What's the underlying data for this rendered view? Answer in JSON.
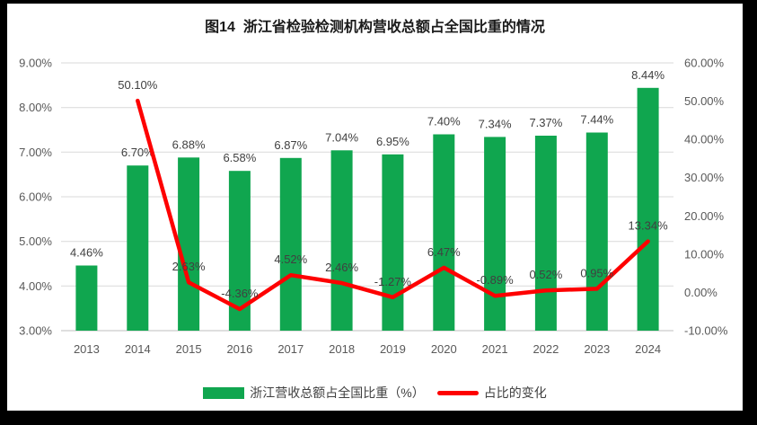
{
  "frame": {
    "border_color": "#000000",
    "panel_background": "#ffffff"
  },
  "title": "图14  浙江省检验检测机构营收总额占全国比重的情况",
  "chart_data": {
    "type": "bar",
    "subtype": "combo-bar-line",
    "title": "图14  浙江省检验检测机构营收总额占全国比重的情况",
    "categories": [
      "2013",
      "2014",
      "2015",
      "2016",
      "2017",
      "2018",
      "2019",
      "2020",
      "2021",
      "2022",
      "2023",
      "2024"
    ],
    "series": [
      {
        "name": "浙江营收总额占全国比重（%）",
        "type": "bar",
        "axis": "left",
        "color": "#10A64F",
        "values": [
          4.46,
          6.7,
          6.88,
          6.58,
          6.87,
          7.04,
          6.95,
          7.4,
          7.34,
          7.37,
          7.44,
          8.44
        ],
        "labels": [
          "4.46%",
          "6.70%",
          "6.88%",
          "6.58%",
          "6.87%",
          "7.04%",
          "6.95%",
          "7.40%",
          "7.34%",
          "7.37%",
          "7.44%",
          "8.44%"
        ]
      },
      {
        "name": "占比的变化",
        "type": "line",
        "axis": "right",
        "color": "#FE0000",
        "values": [
          null,
          50.1,
          2.63,
          -4.36,
          4.52,
          2.46,
          -1.27,
          6.47,
          -0.89,
          0.52,
          0.95,
          13.34
        ],
        "labels": [
          "",
          "50.10%",
          "2.63%",
          "-4.36%",
          "4.52%",
          "2.46%",
          "-1.27%",
          "6.47%",
          "-0.89%",
          "0.52%",
          "0.95%",
          "13.34%"
        ]
      }
    ],
    "left_axis": {
      "min": 3,
      "max": 9,
      "step": 1,
      "tick_labels": [
        "3.00%",
        "4.00%",
        "5.00%",
        "6.00%",
        "7.00%",
        "8.00%",
        "9.00%"
      ]
    },
    "right_axis": {
      "min": -10,
      "max": 60,
      "step": 10,
      "tick_labels": [
        "-10.00%",
        "0.00%",
        "10.00%",
        "20.00%",
        "30.00%",
        "40.00%",
        "50.00%",
        "60.00%"
      ]
    },
    "grid": true,
    "gridline_color": "#D9D9D9",
    "axis_line_color": "#BFBFBF",
    "legend_position": "bottom"
  },
  "legend": {
    "items": [
      {
        "label": "浙江营收总额占全国比重（%）",
        "swatch": "bar",
        "color": "#10A64F"
      },
      {
        "label": "占比的变化",
        "swatch": "line",
        "color": "#FE0000"
      }
    ]
  }
}
